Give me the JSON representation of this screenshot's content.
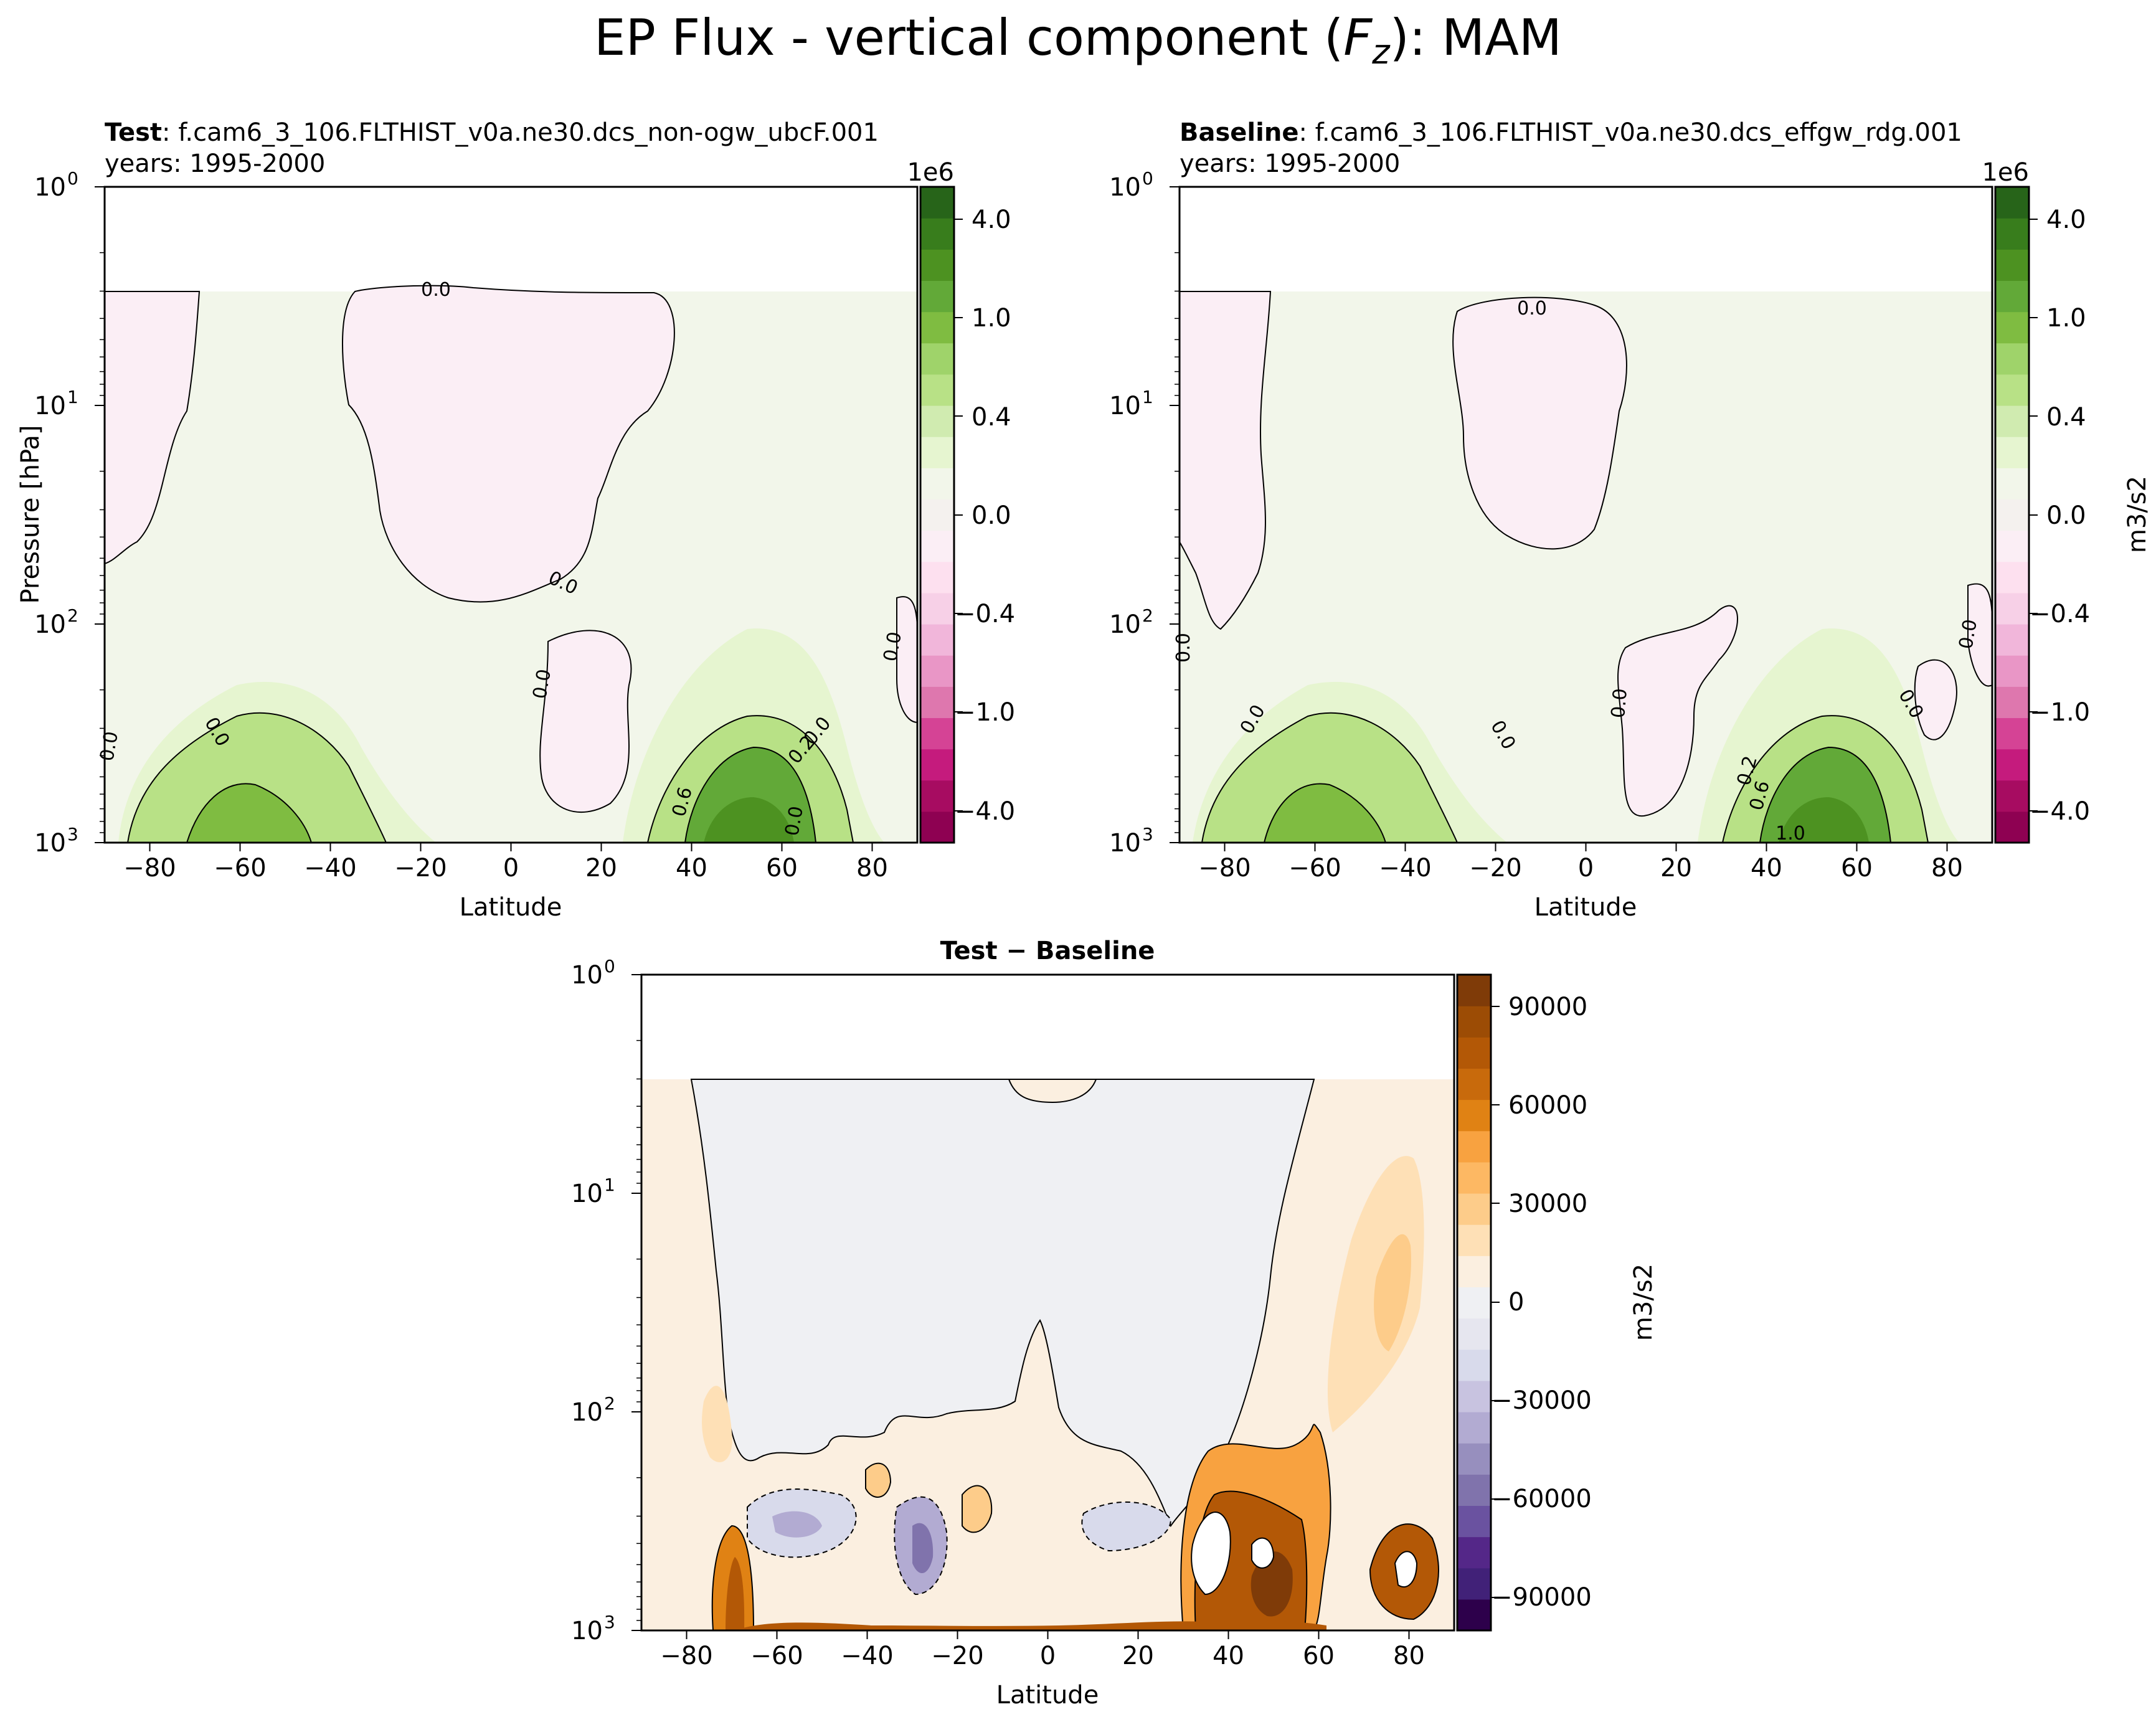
{
  "figure": {
    "title_prefix": "EP Flux - vertical component (",
    "title_var": "F",
    "title_sub": "z",
    "title_suffix": "): MAM"
  },
  "panels": {
    "test": {
      "label_bold": "Test",
      "label_rest": ": f.cam6_3_106.FLTHIST_v0a.ne30.dcs_non-ogw_ubcF.001",
      "years": "years: 1995-2000",
      "xlabel": "Latitude",
      "ylabel": "Pressure [hPa]"
    },
    "baseline": {
      "label_bold": "Baseline",
      "label_rest": ": f.cam6_3_106.FLTHIST_v0a.ne30.dcs_effgw_rdg.001",
      "years": "years: 1995-2000",
      "xlabel": "Latitude"
    },
    "diff": {
      "title": "Test − Baseline",
      "xlabel": "Latitude"
    }
  },
  "colorbars": {
    "main": {
      "offset": "1e6",
      "units": "m3/s2",
      "ticks": [
        "4.0",
        "1.0",
        "0.4",
        "0.0",
        "−0.4",
        "−1.0",
        "−4.0"
      ],
      "colors": [
        "#8e0152",
        "#a70c61",
        "#c51b7d",
        "#d54395",
        "#de77ae",
        "#e996c6",
        "#f1b6da",
        "#f7d0e7",
        "#fde0ef",
        "#fbeef5",
        "#f4f1ee",
        "#f2f6ea",
        "#e6f5d0",
        "#d0ebb0",
        "#b8e186",
        "#9fd36a",
        "#7fbc41",
        "#62a938",
        "#4d9221",
        "#387d1c",
        "#276419"
      ]
    },
    "diff": {
      "units": "m3/s2",
      "ticks": [
        "90000",
        "60000",
        "30000",
        "0",
        "−30000",
        "−60000",
        "−90000"
      ],
      "colors": [
        "#2d004b",
        "#412178",
        "#542788",
        "#6a52a0",
        "#8073ac",
        "#978fbe",
        "#b2abd2",
        "#c8c3e0",
        "#d8daeb",
        "#e6e6ef",
        "#eff0f3",
        "#fbefe0",
        "#fee0b6",
        "#fdcc8a",
        "#fdb863",
        "#f8a240",
        "#e08214",
        "#c86a0c",
        "#b35806",
        "#9c4c05",
        "#7f3b08"
      ]
    }
  },
  "chart_data": [
    {
      "type": "contour",
      "title": "Test: f.cam6_3_106.FLTHIST_v0a.ne30.dcs_non-ogw_ubcF.001",
      "xlabel": "Latitude",
      "ylabel": "Pressure [hPa]",
      "xlim": [
        -90,
        90
      ],
      "ylim": [
        1000,
        1
      ],
      "yscale": "log",
      "x_ticks": [
        "−80",
        "−60",
        "−40",
        "−20",
        "0",
        "20",
        "40",
        "60",
        "80"
      ],
      "y_ticks": [
        "10",
        "10",
        "10",
        "10"
      ],
      "y_tick_exponents": [
        "3",
        "2",
        "1",
        "0"
      ],
      "contour_labels": [
        "0.0",
        "0.0",
        "0.0",
        "0.0",
        "0.0",
        "0.0",
        "0.0",
        "0.2",
        "0.6",
        "0.0"
      ]
    },
    {
      "type": "contour",
      "title": "Baseline: f.cam6_3_106.FLTHIST_v0a.ne30.dcs_effgw_rdg.001",
      "xlabel": "Latitude",
      "xlim": [
        -90,
        90
      ],
      "ylim": [
        1000,
        1
      ],
      "yscale": "log",
      "x_ticks": [
        "−80",
        "−60",
        "−40",
        "−20",
        "0",
        "20",
        "40",
        "60",
        "80"
      ],
      "y_ticks": [
        "10",
        "10",
        "10",
        "10"
      ],
      "y_tick_exponents": [
        "3",
        "2",
        "1",
        "0"
      ],
      "contour_labels": [
        "0.0",
        "0.0",
        "0.0",
        "0.0",
        "0.0",
        "0.0",
        "0.0",
        "0.2",
        "0.6",
        "1.0"
      ]
    },
    {
      "type": "contour",
      "title": "Test − Baseline",
      "xlabel": "Latitude",
      "xlim": [
        -90,
        90
      ],
      "ylim": [
        1000,
        1
      ],
      "yscale": "log",
      "x_ticks": [
        "−80",
        "−60",
        "−40",
        "−20",
        "0",
        "20",
        "40",
        "60",
        "80"
      ],
      "y_ticks": [
        "10",
        "10",
        "10",
        "10"
      ],
      "y_tick_exponents": [
        "3",
        "2",
        "1",
        "0"
      ],
      "colorbar_range": [
        -100000,
        100000
      ]
    }
  ]
}
